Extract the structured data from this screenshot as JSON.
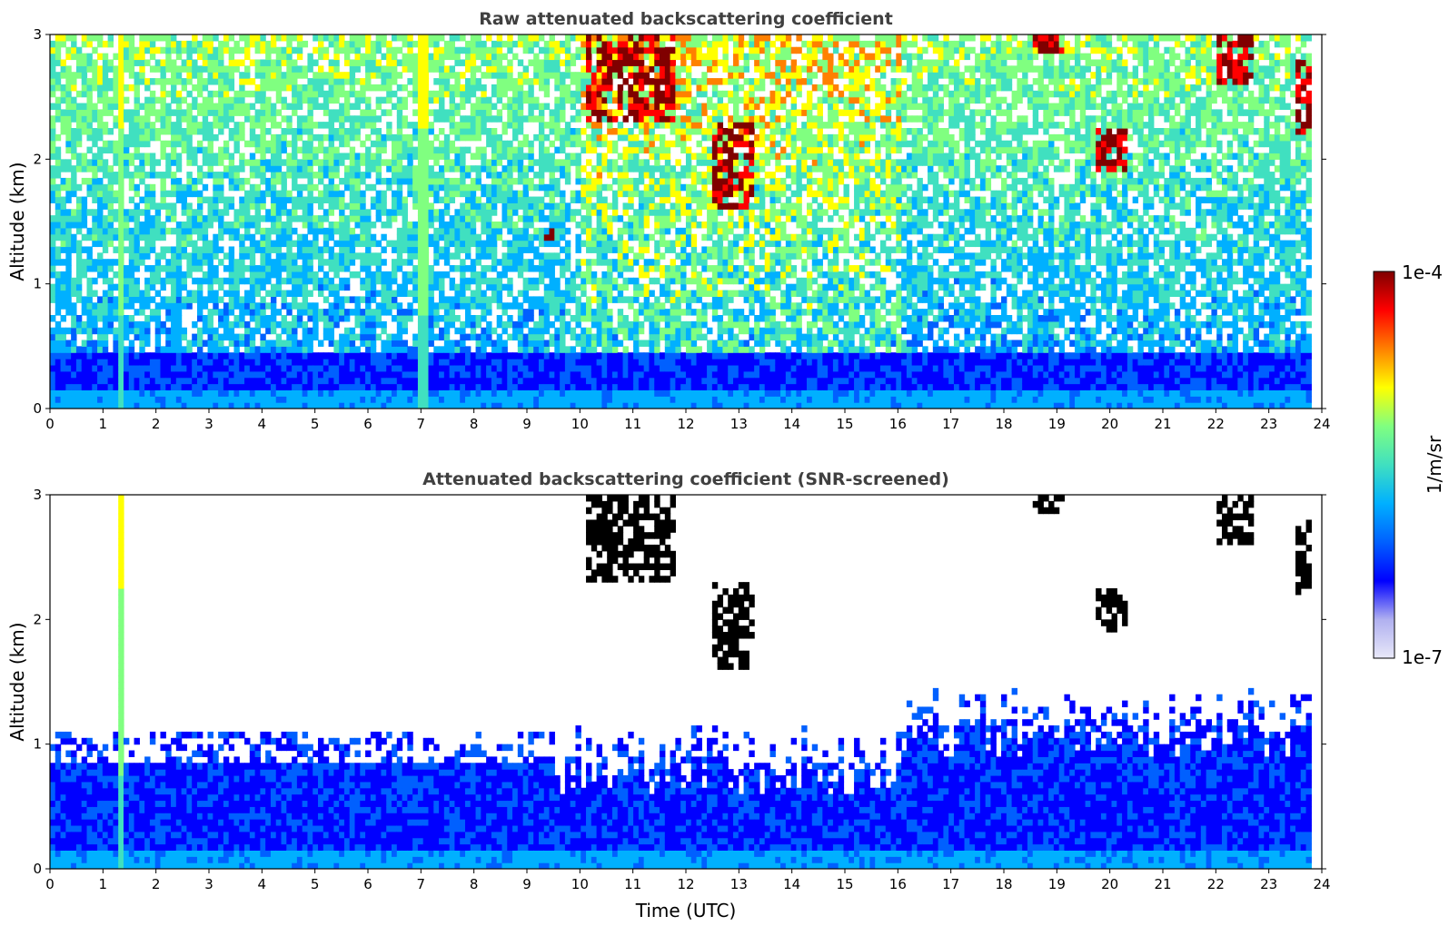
{
  "chart_data": [
    {
      "type": "heatmap",
      "title": "Raw attenuated backscattering coefficient",
      "xlabel": "",
      "ylabel": "Altitude (km)",
      "xlim": [
        0,
        24
      ],
      "ylim": [
        0,
        3
      ],
      "x_ticks": [
        "0",
        "1",
        "2",
        "3",
        "4",
        "5",
        "6",
        "7",
        "8",
        "9",
        "10",
        "11",
        "12",
        "13",
        "14",
        "15",
        "16",
        "17",
        "18",
        "19",
        "20",
        "21",
        "22",
        "23",
        "24"
      ],
      "y_ticks": [
        "0",
        "1",
        "2",
        "3"
      ],
      "data_end_hour": 23.8,
      "screened": false,
      "features": {
        "boundary_layer_top_km": 0.45,
        "noisy_background": true,
        "vertical_streak_hours": [
          1.3,
          7.0
        ],
        "clouds": [
          {
            "t_start": 10.1,
            "t_end": 11.8,
            "z_low": 2.3,
            "z_high": 3.0
          },
          {
            "t_start": 12.4,
            "t_end": 13.2,
            "z_low": 1.6,
            "z_high": 2.3
          },
          {
            "t_start": 9.3,
            "t_end": 9.5,
            "z_low": 1.35,
            "z_high": 1.45
          },
          {
            "t_start": 18.5,
            "t_end": 19.1,
            "z_low": 2.85,
            "z_high": 3.0
          },
          {
            "t_start": 19.7,
            "t_end": 20.3,
            "z_low": 1.9,
            "z_high": 2.2
          },
          {
            "t_start": 22.0,
            "t_end": 22.7,
            "z_low": 2.6,
            "z_high": 3.0
          },
          {
            "t_start": 23.5,
            "t_end": 23.8,
            "z_low": 2.2,
            "z_high": 2.8
          }
        ]
      }
    },
    {
      "type": "heatmap",
      "title": "Attenuated backscattering coefficient (SNR-screened)",
      "xlabel": "Time (UTC)",
      "ylabel": "Altitude (km)",
      "xlim": [
        0,
        24
      ],
      "ylim": [
        0,
        3
      ],
      "x_ticks": [
        "0",
        "1",
        "2",
        "3",
        "4",
        "5",
        "6",
        "7",
        "8",
        "9",
        "10",
        "11",
        "12",
        "13",
        "14",
        "15",
        "16",
        "17",
        "18",
        "19",
        "20",
        "21",
        "22",
        "23",
        "24"
      ],
      "y_ticks": [
        "0",
        "1",
        "2",
        "3"
      ],
      "data_end_hour": 23.8,
      "screened": true,
      "features": {
        "boundary_layer_top_km": 0.85,
        "boundary_layer_top_km_afternoon": 0.55,
        "vertical_streak_hours": [
          1.3
        ],
        "clouds": [
          {
            "t_start": 10.1,
            "t_end": 11.8,
            "z_low": 2.3,
            "z_high": 3.0
          },
          {
            "t_start": 12.4,
            "t_end": 13.2,
            "z_low": 1.6,
            "z_high": 2.3
          },
          {
            "t_start": 18.5,
            "t_end": 19.1,
            "z_low": 2.85,
            "z_high": 3.0
          },
          {
            "t_start": 19.7,
            "t_end": 20.3,
            "z_low": 1.9,
            "z_high": 2.2
          },
          {
            "t_start": 22.0,
            "t_end": 22.7,
            "z_low": 2.6,
            "z_high": 3.0
          },
          {
            "t_start": 23.5,
            "t_end": 23.8,
            "z_low": 2.2,
            "z_high": 2.8
          }
        ]
      }
    }
  ],
  "colorbar": {
    "label": "1/m/sr",
    "max_label": "1e-4",
    "min_label": "1e-7",
    "colors": [
      "#e8e8f8",
      "#b0b0f0",
      "#0000ff",
      "#0060ff",
      "#00b0ff",
      "#40e0c0",
      "#80ff80",
      "#ffff00",
      "#ff8000",
      "#ff0000",
      "#800000"
    ]
  }
}
